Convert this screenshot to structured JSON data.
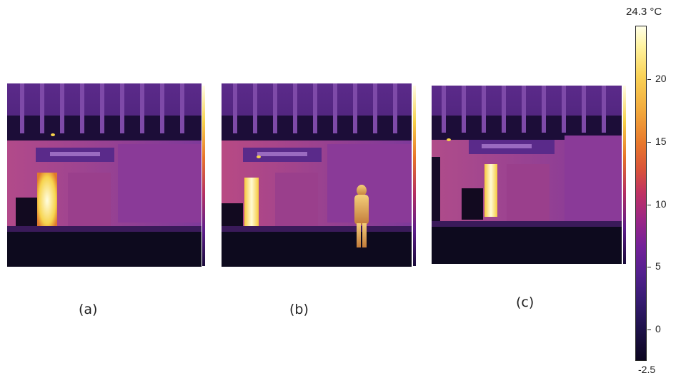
{
  "panels": [
    {
      "label": "(a)"
    },
    {
      "label": "(b)"
    },
    {
      "label": "(c)"
    }
  ],
  "scale": {
    "max_label": "24.3 °C",
    "min_label": "-2.5",
    "ticks": [
      {
        "value": 20,
        "label": "20"
      },
      {
        "value": 15,
        "label": "15"
      },
      {
        "value": 10,
        "label": "10"
      },
      {
        "value": 5,
        "label": "5"
      },
      {
        "value": 0,
        "label": "0"
      }
    ]
  },
  "colors": {
    "sky": "#3a1560",
    "building": "#7a2f8c",
    "ground": "#0d0a1e",
    "hot": "#fff9c8"
  }
}
